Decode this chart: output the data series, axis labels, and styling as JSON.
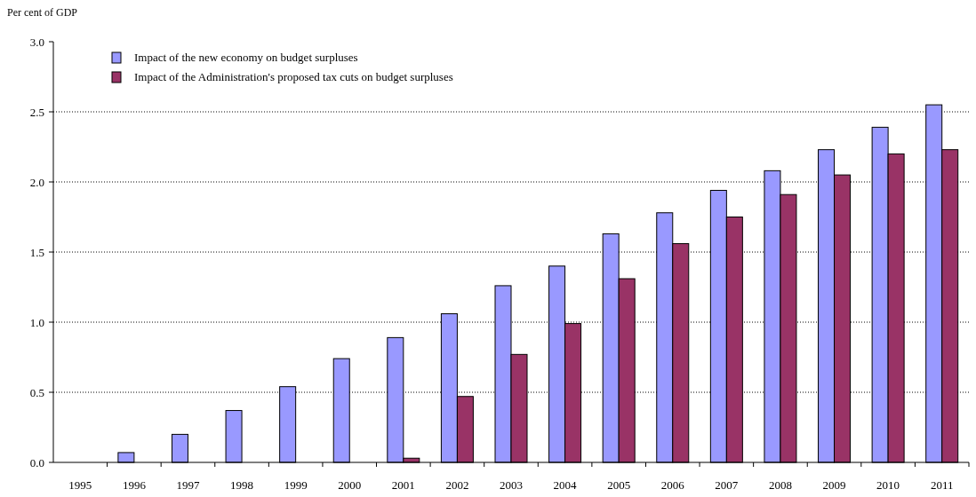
{
  "chart_data": {
    "type": "bar",
    "ylabel": "Per cent of GDP",
    "categories": [
      "1995",
      "1996",
      "1997",
      "1998",
      "1999",
      "2000",
      "2001",
      "2002",
      "2003",
      "2004",
      "2005",
      "2006",
      "2007",
      "2008",
      "2009",
      "2010",
      "2011"
    ],
    "series": [
      {
        "name": "Impact of the new economy on budget surpluses",
        "color": "#9999ff",
        "values": [
          null,
          0.07,
          0.2,
          0.37,
          0.54,
          0.74,
          0.89,
          1.06,
          1.26,
          1.4,
          1.63,
          1.78,
          1.94,
          2.08,
          2.23,
          2.39,
          2.55
        ]
      },
      {
        "name": "Impact of the Administration's proposed tax cuts on budget surpluses",
        "color": "#993366",
        "values": [
          null,
          null,
          null,
          null,
          null,
          null,
          0.03,
          0.47,
          0.77,
          0.99,
          1.31,
          1.56,
          1.75,
          1.91,
          2.05,
          2.2,
          2.23
        ]
      }
    ],
    "ylim": [
      0,
      3
    ],
    "yticks": [
      {
        "value": 0,
        "label": "0.0"
      },
      {
        "value": 0.5,
        "label": "0.5"
      },
      {
        "value": 1,
        "label": "1.0"
      },
      {
        "value": 1.5,
        "label": "1.5"
      },
      {
        "value": 2,
        "label": "2.0"
      },
      {
        "value": 2.5,
        "label": "2.5"
      },
      {
        "value": 3,
        "label": "3.0"
      }
    ],
    "grid": "y",
    "legend": "top left"
  }
}
